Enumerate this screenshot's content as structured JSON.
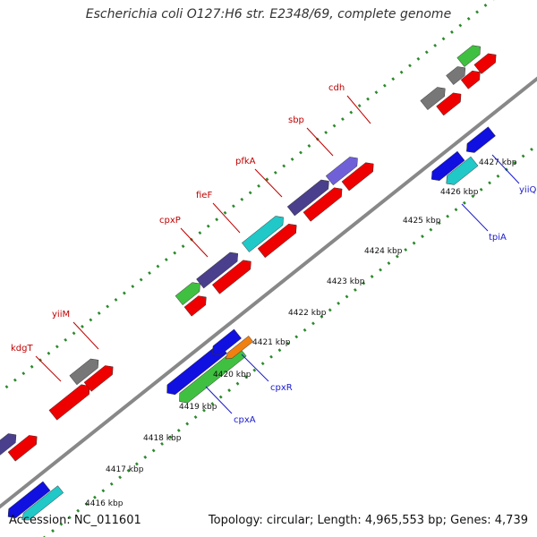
{
  "header": {
    "title": "Escherichia coli O127:H6 str. E2348/69, complete genome"
  },
  "footer": {
    "accession": "Accession: NC_011601",
    "stats": "Topology: circular; Length: 4,965,553 bp; Genes: 4,739"
  },
  "ticks": [
    "4416 kbp",
    "4417 kbp",
    "4418 kbp",
    "4419 kbp",
    "4420 kbp",
    "4421 kbp",
    "4422 kbp",
    "4423 kbp",
    "4424 kbp",
    "4425 kbp",
    "4426 kbp",
    "4427 kbp"
  ],
  "genes_forward": [
    "kdgT",
    "yiiM",
    "cpxP",
    "fieF",
    "pfkA",
    "sbp",
    "cdh"
  ],
  "genes_reverse": [
    "cpxA",
    "cpxR",
    "tpiA",
    "yiiQ"
  ],
  "colors": {
    "forward_label": "#c00000",
    "reverse_label": "#1a1ad0",
    "strand_line": "#888888",
    "tick_mark": "#2a8a2a",
    "red": "#ee0000",
    "navy": "#4a3f8c",
    "blue": "#1010e0",
    "gray": "#777777",
    "cyan": "#20c8c8",
    "green": "#40c040",
    "orange": "#f08010",
    "purple": "#7060d8"
  }
}
